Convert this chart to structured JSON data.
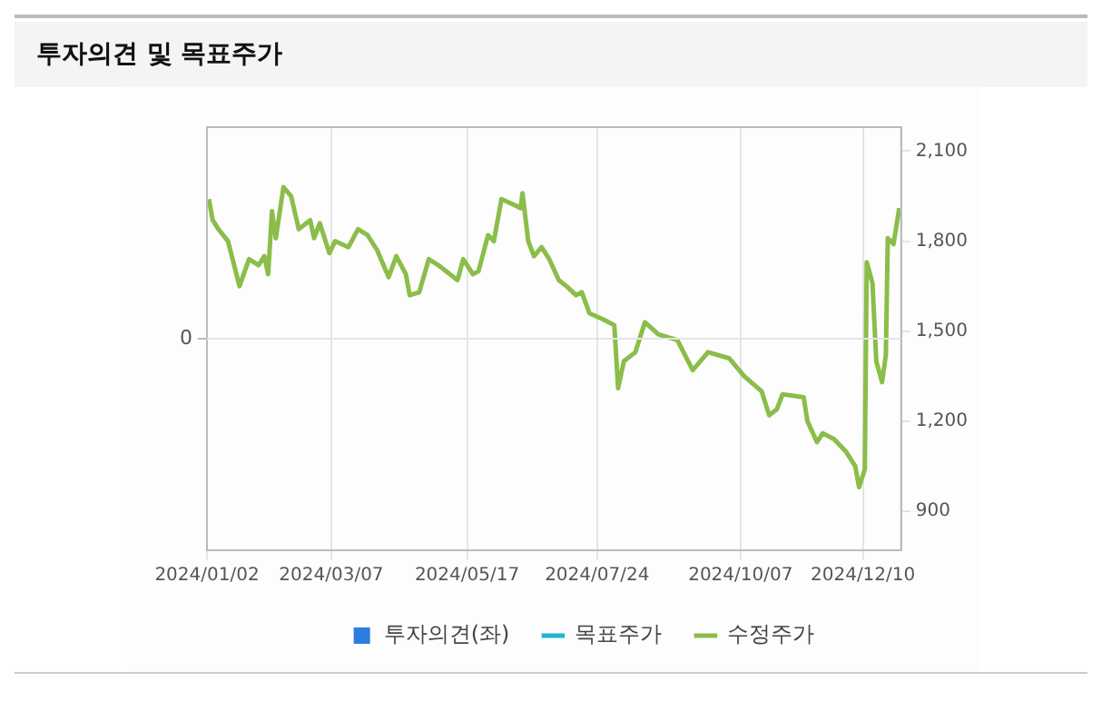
{
  "chart_data": {
    "type": "line",
    "title": "투자의견 및 목표주가",
    "xlim": [
      "2024-01-02",
      "2024-12-30"
    ],
    "xticks": [
      {
        "value": "2024-01-02",
        "label": "2024/01/02"
      },
      {
        "value": "2024-03-07",
        "label": "2024/03/07"
      },
      {
        "value": "2024-05-17",
        "label": "2024/05/17"
      },
      {
        "value": "2024-07-24",
        "label": "2024/07/24"
      },
      {
        "value": "2024-10-07",
        "label": "2024/10/07"
      },
      {
        "value": "2024-12-10",
        "label": "2024/12/10"
      }
    ],
    "annotations": [
      "0"
    ],
    "y2lim": [
      770,
      2180
    ],
    "y2ticks": [
      {
        "value": 900,
        "label": "900"
      },
      {
        "value": 1200,
        "label": "1,200"
      },
      {
        "value": 1500,
        "label": "1,500"
      },
      {
        "value": 1800,
        "label": "1,800"
      },
      {
        "value": 2100,
        "label": "2,100"
      }
    ],
    "grid": true,
    "legend": "bottom",
    "marker": "none",
    "line_style": "solid",
    "series": [
      {
        "name": "투자의견(좌)",
        "type": "bar",
        "color": "#2b7de0"
      },
      {
        "name": "목표주가",
        "type": "line",
        "axis": "y2",
        "color": "#1fb5d0"
      },
      {
        "name": "수정주가",
        "axis": "y2",
        "color": "#8bbd4a",
        "x": [
          "2024-01-03",
          "2024-01-05",
          "2024-01-08",
          "2024-01-13",
          "2024-01-19",
          "2024-01-24",
          "2024-01-29",
          "2024-02-01",
          "2024-02-03",
          "2024-02-05",
          "2024-02-07",
          "2024-02-11",
          "2024-02-15",
          "2024-02-19",
          "2024-02-25",
          "2024-02-27",
          "2024-03-01",
          "2024-03-06",
          "2024-03-09",
          "2024-03-16",
          "2024-03-21",
          "2024-03-26",
          "2024-03-31",
          "2024-04-06",
          "2024-04-10",
          "2024-04-15",
          "2024-04-17",
          "2024-04-22",
          "2024-04-27",
          "2024-05-02",
          "2024-05-12",
          "2024-05-15",
          "2024-05-20",
          "2024-05-23",
          "2024-05-28",
          "2024-05-31",
          "2024-06-04",
          "2024-06-11",
          "2024-06-14",
          "2024-06-15",
          "2024-06-18",
          "2024-06-21",
          "2024-06-25",
          "2024-06-29",
          "2024-07-04",
          "2024-07-08",
          "2024-07-13",
          "2024-07-16",
          "2024-07-20",
          "2024-07-27",
          "2024-08-02",
          "2024-08-04",
          "2024-08-07",
          "2024-08-13",
          "2024-08-18",
          "2024-08-25",
          "2024-09-04",
          "2024-09-12",
          "2024-09-20",
          "2024-10-01",
          "2024-10-09",
          "2024-10-18",
          "2024-10-22",
          "2024-10-26",
          "2024-10-29",
          "2024-11-09",
          "2024-11-11",
          "2024-11-16",
          "2024-11-19",
          "2024-11-25",
          "2024-12-01",
          "2024-12-06",
          "2024-12-08",
          "2024-12-11",
          "2024-12-12",
          "2024-12-15",
          "2024-12-17",
          "2024-12-20",
          "2024-12-22",
          "2024-12-23",
          "2024-12-26",
          "2024-12-29"
        ],
        "values": [
          1940,
          1870,
          1840,
          1800,
          1650,
          1740,
          1720,
          1750,
          1690,
          1900,
          1810,
          1980,
          1950,
          1840,
          1870,
          1810,
          1860,
          1760,
          1800,
          1780,
          1840,
          1820,
          1770,
          1680,
          1750,
          1690,
          1620,
          1630,
          1740,
          1720,
          1670,
          1740,
          1690,
          1700,
          1820,
          1800,
          1940,
          1920,
          1910,
          1960,
          1800,
          1750,
          1780,
          1740,
          1670,
          1650,
          1620,
          1630,
          1560,
          1540,
          1520,
          1310,
          1400,
          1430,
          1530,
          1490,
          1470,
          1370,
          1430,
          1410,
          1350,
          1300,
          1220,
          1240,
          1290,
          1280,
          1200,
          1130,
          1160,
          1140,
          1100,
          1050,
          980,
          1040,
          1730,
          1660,
          1400,
          1330,
          1420,
          1810,
          1790,
          1910
        ]
      }
    ]
  }
}
